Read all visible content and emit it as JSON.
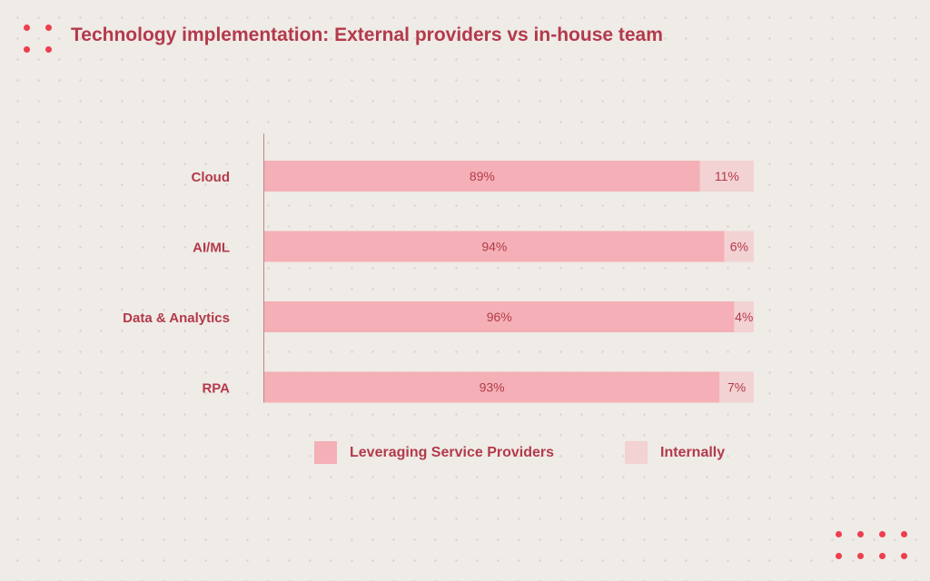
{
  "header": {
    "title": "Technology implementation: External providers vs in-house team"
  },
  "colors": {
    "primary": "#f4b0b6",
    "secondary": "#f3d2d3",
    "text": "#b33a4a",
    "accent_dots": "#ee3e4e"
  },
  "chart_data": {
    "type": "bar",
    "orientation": "horizontal",
    "stacked": true,
    "categories": [
      "Cloud",
      "AI/ML",
      "Data & Analytics",
      "RPA"
    ],
    "series": [
      {
        "name": "Leveraging Service Providers",
        "values": [
          89,
          94,
          96,
          93
        ],
        "labels": [
          "89%",
          "94%",
          "96%",
          "93%"
        ]
      },
      {
        "name": "Internally",
        "values": [
          11,
          6,
          4,
          7
        ],
        "labels": [
          "11%",
          "6%",
          "4%",
          "7%"
        ]
      }
    ],
    "xlim": [
      0,
      100
    ],
    "grid": false,
    "legend_position": "bottom"
  }
}
